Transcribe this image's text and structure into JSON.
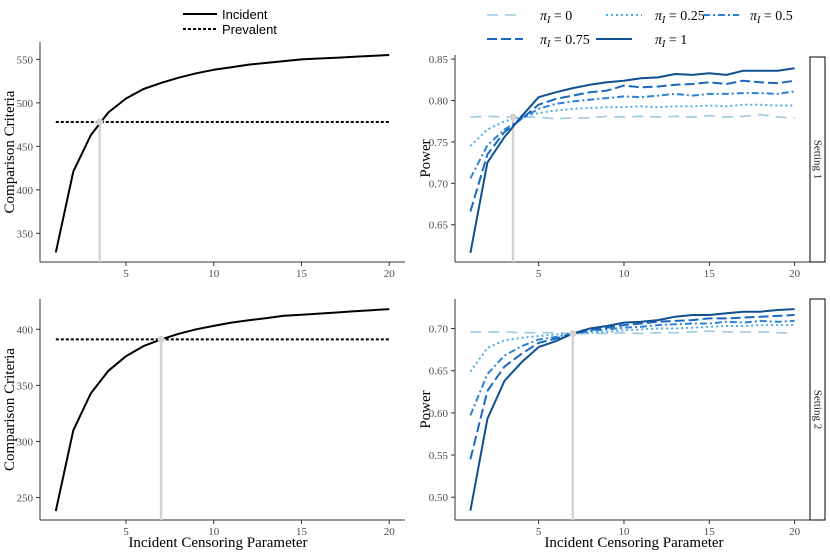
{
  "colors": {
    "black": "#000000",
    "pi0": "#9ecae1",
    "pi025": "#4aa8e0",
    "pi05": "#2b83d6",
    "pi075": "#1a68c0",
    "pi1": "#10508f",
    "marker": "#d3d3d3"
  },
  "legend_left": {
    "incident": "Incident",
    "prevalent": "Prevalent"
  },
  "legend_right": {
    "items": [
      {
        "key": "pi0",
        "label": "π_I = 0"
      },
      {
        "key": "pi025",
        "label": "π_I = 0.25"
      },
      {
        "key": "pi05",
        "label": "π_I = 0.5"
      },
      {
        "key": "pi075",
        "label": "π_I = 0.75"
      },
      {
        "key": "pi1",
        "label": "π_I = 1"
      }
    ]
  },
  "x_axis_label": "Incident Censoring Parameter",
  "chart_data": [
    {
      "id": "tl",
      "type": "line",
      "ylabel": "Comparison Criteria",
      "xlim": [
        0.1,
        20.9
      ],
      "ylim": [
        317,
        570
      ],
      "xticks": [
        5,
        10,
        15,
        20
      ],
      "yticks": [
        350,
        400,
        450,
        500,
        550
      ],
      "vline": 3.5,
      "series": [
        {
          "name": "Incident",
          "style": "solid",
          "x": [
            1,
            2,
            3,
            4,
            5,
            6,
            7,
            8,
            9,
            10,
            11,
            12,
            13,
            14,
            15,
            16,
            17,
            18,
            19,
            20
          ],
          "values": [
            328,
            421,
            463,
            489,
            505,
            516,
            523,
            529,
            534,
            538,
            541,
            544,
            546,
            548,
            550,
            551,
            552,
            553,
            554,
            555
          ]
        },
        {
          "name": "Prevalent",
          "style": "dotted",
          "x": [
            1,
            20
          ],
          "values": [
            478,
            478
          ]
        }
      ]
    },
    {
      "id": "tr",
      "type": "line",
      "ylabel": "Power",
      "strip": "Setting 1",
      "xlim": [
        0.1,
        20.9
      ],
      "ylim": [
        0.605,
        0.855
      ],
      "xticks": [
        5,
        10,
        15,
        20
      ],
      "yticks": [
        0.65,
        0.7,
        0.75,
        0.8,
        0.85
      ],
      "vline": 3.5,
      "series": [
        {
          "name": "π_I = 0",
          "key": "pi0",
          "x": [
            1,
            2,
            3,
            4,
            5,
            6,
            7,
            8,
            9,
            10,
            11,
            12,
            13,
            14,
            15,
            16,
            17,
            18,
            19,
            20
          ],
          "values": [
            0.78,
            0.781,
            0.78,
            0.78,
            0.78,
            0.778,
            0.779,
            0.779,
            0.781,
            0.78,
            0.781,
            0.78,
            0.781,
            0.78,
            0.782,
            0.78,
            0.781,
            0.783,
            0.78,
            0.779
          ]
        },
        {
          "name": "π_I = 0.25",
          "key": "pi025",
          "x": [
            1,
            2,
            3,
            4,
            5,
            6,
            7,
            8,
            9,
            10,
            11,
            12,
            13,
            14,
            15,
            16,
            17,
            18,
            19,
            20
          ],
          "values": [
            0.745,
            0.765,
            0.775,
            0.78,
            0.785,
            0.788,
            0.79,
            0.791,
            0.792,
            0.792,
            0.793,
            0.792,
            0.793,
            0.793,
            0.794,
            0.793,
            0.795,
            0.795,
            0.794,
            0.794
          ]
        },
        {
          "name": "π_I = 0.5",
          "key": "pi05",
          "x": [
            1,
            2,
            3,
            4,
            5,
            6,
            7,
            8,
            9,
            10,
            11,
            12,
            13,
            14,
            15,
            16,
            17,
            18,
            19,
            20
          ],
          "values": [
            0.706,
            0.746,
            0.765,
            0.778,
            0.79,
            0.796,
            0.799,
            0.801,
            0.803,
            0.805,
            0.804,
            0.806,
            0.808,
            0.806,
            0.808,
            0.808,
            0.809,
            0.809,
            0.808,
            0.811
          ]
        },
        {
          "name": "π_I = 0.75",
          "key": "pi075",
          "x": [
            1,
            2,
            3,
            4,
            5,
            6,
            7,
            8,
            9,
            10,
            11,
            12,
            13,
            14,
            15,
            16,
            17,
            18,
            19,
            20
          ],
          "values": [
            0.666,
            0.735,
            0.762,
            0.778,
            0.795,
            0.802,
            0.806,
            0.81,
            0.812,
            0.818,
            0.816,
            0.817,
            0.819,
            0.82,
            0.822,
            0.82,
            0.824,
            0.822,
            0.821,
            0.824
          ]
        },
        {
          "name": "π_I = 1",
          "key": "pi1",
          "x": [
            1,
            2,
            3,
            4,
            5,
            6,
            7,
            8,
            9,
            10,
            11,
            12,
            13,
            14,
            15,
            16,
            17,
            18,
            19,
            20
          ],
          "values": [
            0.616,
            0.725,
            0.756,
            0.781,
            0.804,
            0.81,
            0.815,
            0.819,
            0.822,
            0.824,
            0.827,
            0.828,
            0.832,
            0.831,
            0.833,
            0.831,
            0.836,
            0.836,
            0.836,
            0.839
          ]
        }
      ]
    },
    {
      "id": "bl",
      "type": "line",
      "ylabel": "Comparison Criteria",
      "xlim": [
        0.1,
        20.9
      ],
      "ylim": [
        230,
        427
      ],
      "xticks": [
        5,
        10,
        15,
        20
      ],
      "yticks": [
        250,
        300,
        350,
        400
      ],
      "vline": 7,
      "series": [
        {
          "name": "Incident",
          "style": "solid",
          "x": [
            1,
            2,
            3,
            4,
            5,
            6,
            7,
            8,
            9,
            10,
            11,
            12,
            13,
            14,
            15,
            16,
            17,
            18,
            19,
            20
          ],
          "values": [
            238,
            310,
            343,
            363,
            376,
            385,
            391,
            396,
            400,
            403,
            406,
            408,
            410,
            412,
            413,
            414,
            415,
            416,
            417,
            418
          ]
        },
        {
          "name": "Prevalent",
          "style": "dotted",
          "x": [
            1,
            20
          ],
          "values": [
            391,
            391
          ]
        }
      ]
    },
    {
      "id": "br",
      "type": "line",
      "ylabel": "Power",
      "strip": "Setting 2",
      "xlim": [
        0.1,
        20.9
      ],
      "ylim": [
        0.473,
        0.735
      ],
      "xticks": [
        5,
        10,
        15,
        20
      ],
      "yticks": [
        0.5,
        0.55,
        0.6,
        0.65,
        0.7
      ],
      "vline": 7,
      "series": [
        {
          "name": "π_I = 0",
          "key": "pi0",
          "x": [
            1,
            2,
            3,
            4,
            5,
            6,
            7,
            8,
            9,
            10,
            11,
            12,
            13,
            14,
            15,
            16,
            17,
            18,
            19,
            20
          ],
          "values": [
            0.696,
            0.696,
            0.696,
            0.695,
            0.695,
            0.695,
            0.694,
            0.694,
            0.694,
            0.695,
            0.694,
            0.695,
            0.695,
            0.696,
            0.697,
            0.696,
            0.696,
            0.696,
            0.695,
            0.694
          ]
        },
        {
          "name": "π_I = 0.25",
          "key": "pi025",
          "x": [
            1,
            2,
            3,
            4,
            5,
            6,
            7,
            8,
            9,
            10,
            11,
            12,
            13,
            14,
            15,
            16,
            17,
            18,
            19,
            20
          ],
          "values": [
            0.649,
            0.677,
            0.686,
            0.689,
            0.691,
            0.693,
            0.694,
            0.695,
            0.696,
            0.698,
            0.699,
            0.7,
            0.7,
            0.701,
            0.702,
            0.703,
            0.703,
            0.704,
            0.704,
            0.704
          ]
        },
        {
          "name": "π_I = 0.5",
          "key": "pi05",
          "x": [
            1,
            2,
            3,
            4,
            5,
            6,
            7,
            8,
            9,
            10,
            11,
            12,
            13,
            14,
            15,
            16,
            17,
            18,
            19,
            20
          ],
          "values": [
            0.597,
            0.646,
            0.668,
            0.679,
            0.687,
            0.69,
            0.694,
            0.697,
            0.699,
            0.701,
            0.702,
            0.704,
            0.705,
            0.706,
            0.706,
            0.708,
            0.707,
            0.709,
            0.708,
            0.709
          ]
        },
        {
          "name": "π_I = 0.75",
          "key": "pi075",
          "x": [
            1,
            2,
            3,
            4,
            5,
            6,
            7,
            8,
            9,
            10,
            11,
            12,
            13,
            14,
            15,
            16,
            17,
            18,
            19,
            20
          ],
          "values": [
            0.545,
            0.626,
            0.655,
            0.67,
            0.683,
            0.688,
            0.694,
            0.698,
            0.701,
            0.704,
            0.706,
            0.708,
            0.709,
            0.71,
            0.712,
            0.712,
            0.713,
            0.714,
            0.715,
            0.716
          ]
        },
        {
          "name": "π_I = 1",
          "key": "pi1",
          "x": [
            1,
            2,
            3,
            4,
            5,
            6,
            7,
            8,
            9,
            10,
            11,
            12,
            13,
            14,
            15,
            16,
            17,
            18,
            19,
            20
          ],
          "values": [
            0.484,
            0.593,
            0.638,
            0.66,
            0.678,
            0.685,
            0.694,
            0.7,
            0.703,
            0.707,
            0.708,
            0.71,
            0.714,
            0.716,
            0.716,
            0.718,
            0.72,
            0.72,
            0.722,
            0.723
          ]
        }
      ]
    }
  ]
}
